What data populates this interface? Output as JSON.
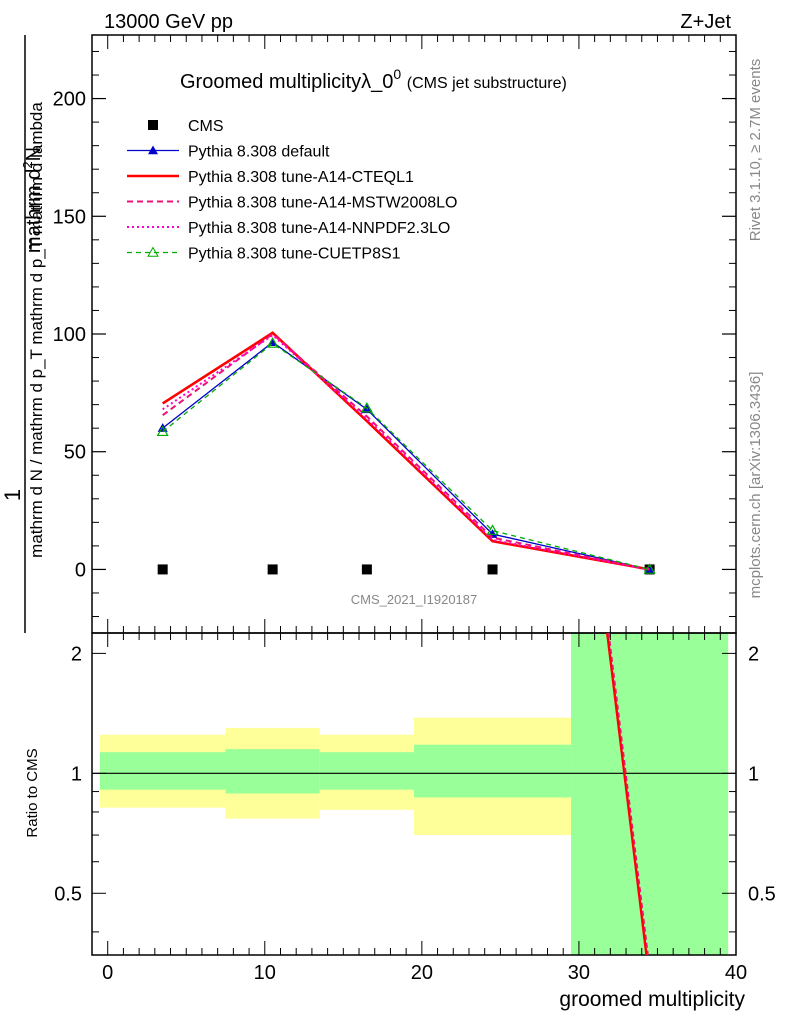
{
  "header": {
    "energy": "13000 GeV pp",
    "process": "Z+Jet"
  },
  "side": {
    "rivet": "Rivet 3.1.10, ≥ 2.7M events",
    "mcplots": "mcplots.cern.ch [arXiv:1306.3436]"
  },
  "watermark": "CMS_2021_I1920187",
  "chart_data": [
    {
      "type": "line",
      "title_main": "Groomed multiplicityλ_0",
      "title_sup": "0",
      "title_sub": "(CMS jet substructure)",
      "ylabel": {
        "prefix": "1",
        "frac_num": "mathrm d",
        "frac_sup": "2",
        "frac_num2": "N",
        "denominator": "mathrm d N / mathrm d p_T mathrm d p_T mathrm d lambda"
      },
      "xlabel": "groomed multiplicity",
      "xlim": [
        -1,
        40
      ],
      "ylim": [
        -27,
        227
      ],
      "xticks": [
        0,
        10,
        20,
        30,
        40
      ],
      "yticks": [
        0,
        50,
        100,
        150,
        200
      ],
      "series": [
        {
          "name": "CMS",
          "color": "#000000",
          "style": "marker-square",
          "x": [
            3.5,
            10.5,
            16.5,
            24.5,
            34.5
          ],
          "y": [
            0,
            0,
            0,
            0,
            0
          ]
        },
        {
          "name": "Pythia 8.308 default",
          "color": "#0000cc",
          "style": "solid-triangle",
          "x": [
            3.5,
            10.5,
            16.5,
            24.5,
            34.5
          ],
          "y": [
            60,
            96.5,
            68,
            15,
            0
          ]
        },
        {
          "name": "Pythia 8.308 tune-A14-CTEQL1",
          "color": "#ff0000",
          "style": "solid-thick",
          "x": [
            3.5,
            10.5,
            16.5,
            24.5,
            34.5
          ],
          "y": [
            70.5,
            100.5,
            63,
            12,
            0
          ]
        },
        {
          "name": "Pythia 8.308 tune-A14-MSTW2008LO",
          "color": "#ee1177",
          "style": "dashed",
          "x": [
            3.5,
            10.5,
            16.5,
            24.5,
            34.5
          ],
          "y": [
            65.5,
            100,
            65,
            13.5,
            0
          ]
        },
        {
          "name": "Pythia 8.308 tune-A14-NNPDF2.3LO",
          "color": "#ff00cc",
          "style": "dotted",
          "x": [
            3.5,
            10.5,
            16.5,
            24.5,
            34.5
          ],
          "y": [
            68,
            99.5,
            64,
            12.5,
            0
          ]
        },
        {
          "name": "Pythia 8.308 tune-CUETP8S1",
          "color": "#00aa00",
          "style": "dashed-open-triangle",
          "x": [
            3.5,
            10.5,
            16.5,
            24.5,
            34.5
          ],
          "y": [
            58.5,
            96,
            68.5,
            16.5,
            0
          ]
        }
      ]
    },
    {
      "type": "area",
      "ylabel": "Ratio to CMS",
      "xlim": [
        -1,
        40
      ],
      "ylim": [
        0.35,
        2.25
      ],
      "yticks": [
        0.5,
        1,
        2
      ],
      "xticks": [
        0,
        10,
        20,
        30,
        40
      ],
      "reference": 1,
      "bands": [
        {
          "x0": -0.5,
          "x1": 7.5,
          "inner": [
            0.91,
            1.13
          ],
          "outer": [
            0.82,
            1.25
          ]
        },
        {
          "x0": 7.5,
          "x1": 13.5,
          "inner": [
            0.89,
            1.15
          ],
          "outer": [
            0.77,
            1.3
          ]
        },
        {
          "x0": 13.5,
          "x1": 19.5,
          "inner": [
            0.91,
            1.13
          ],
          "outer": [
            0.81,
            1.25
          ]
        },
        {
          "x0": 19.5,
          "x1": 29.5,
          "inner": [
            0.87,
            1.18
          ],
          "outer": [
            0.7,
            1.38
          ]
        },
        {
          "x0": 29.5,
          "x1": 39.5,
          "inner": [
            0.35,
            2.25
          ],
          "outer": [
            0.35,
            2.25
          ]
        }
      ],
      "ratio_lines": [
        {
          "name": "Pythia 8.308 tune-A14-CTEQL1",
          "color": "#ff0000",
          "x": [
            31.8,
            34.3
          ],
          "y": [
            2.25,
            0.35
          ]
        },
        {
          "name": "Pythia 8.308 tune-A14-MSTW2008LO",
          "color": "#ee1177",
          "x": [
            31.9,
            34.4
          ],
          "y": [
            2.25,
            0.35
          ]
        }
      ],
      "colors": {
        "inner": "#99ff99",
        "outer": "#ffff99"
      }
    }
  ]
}
